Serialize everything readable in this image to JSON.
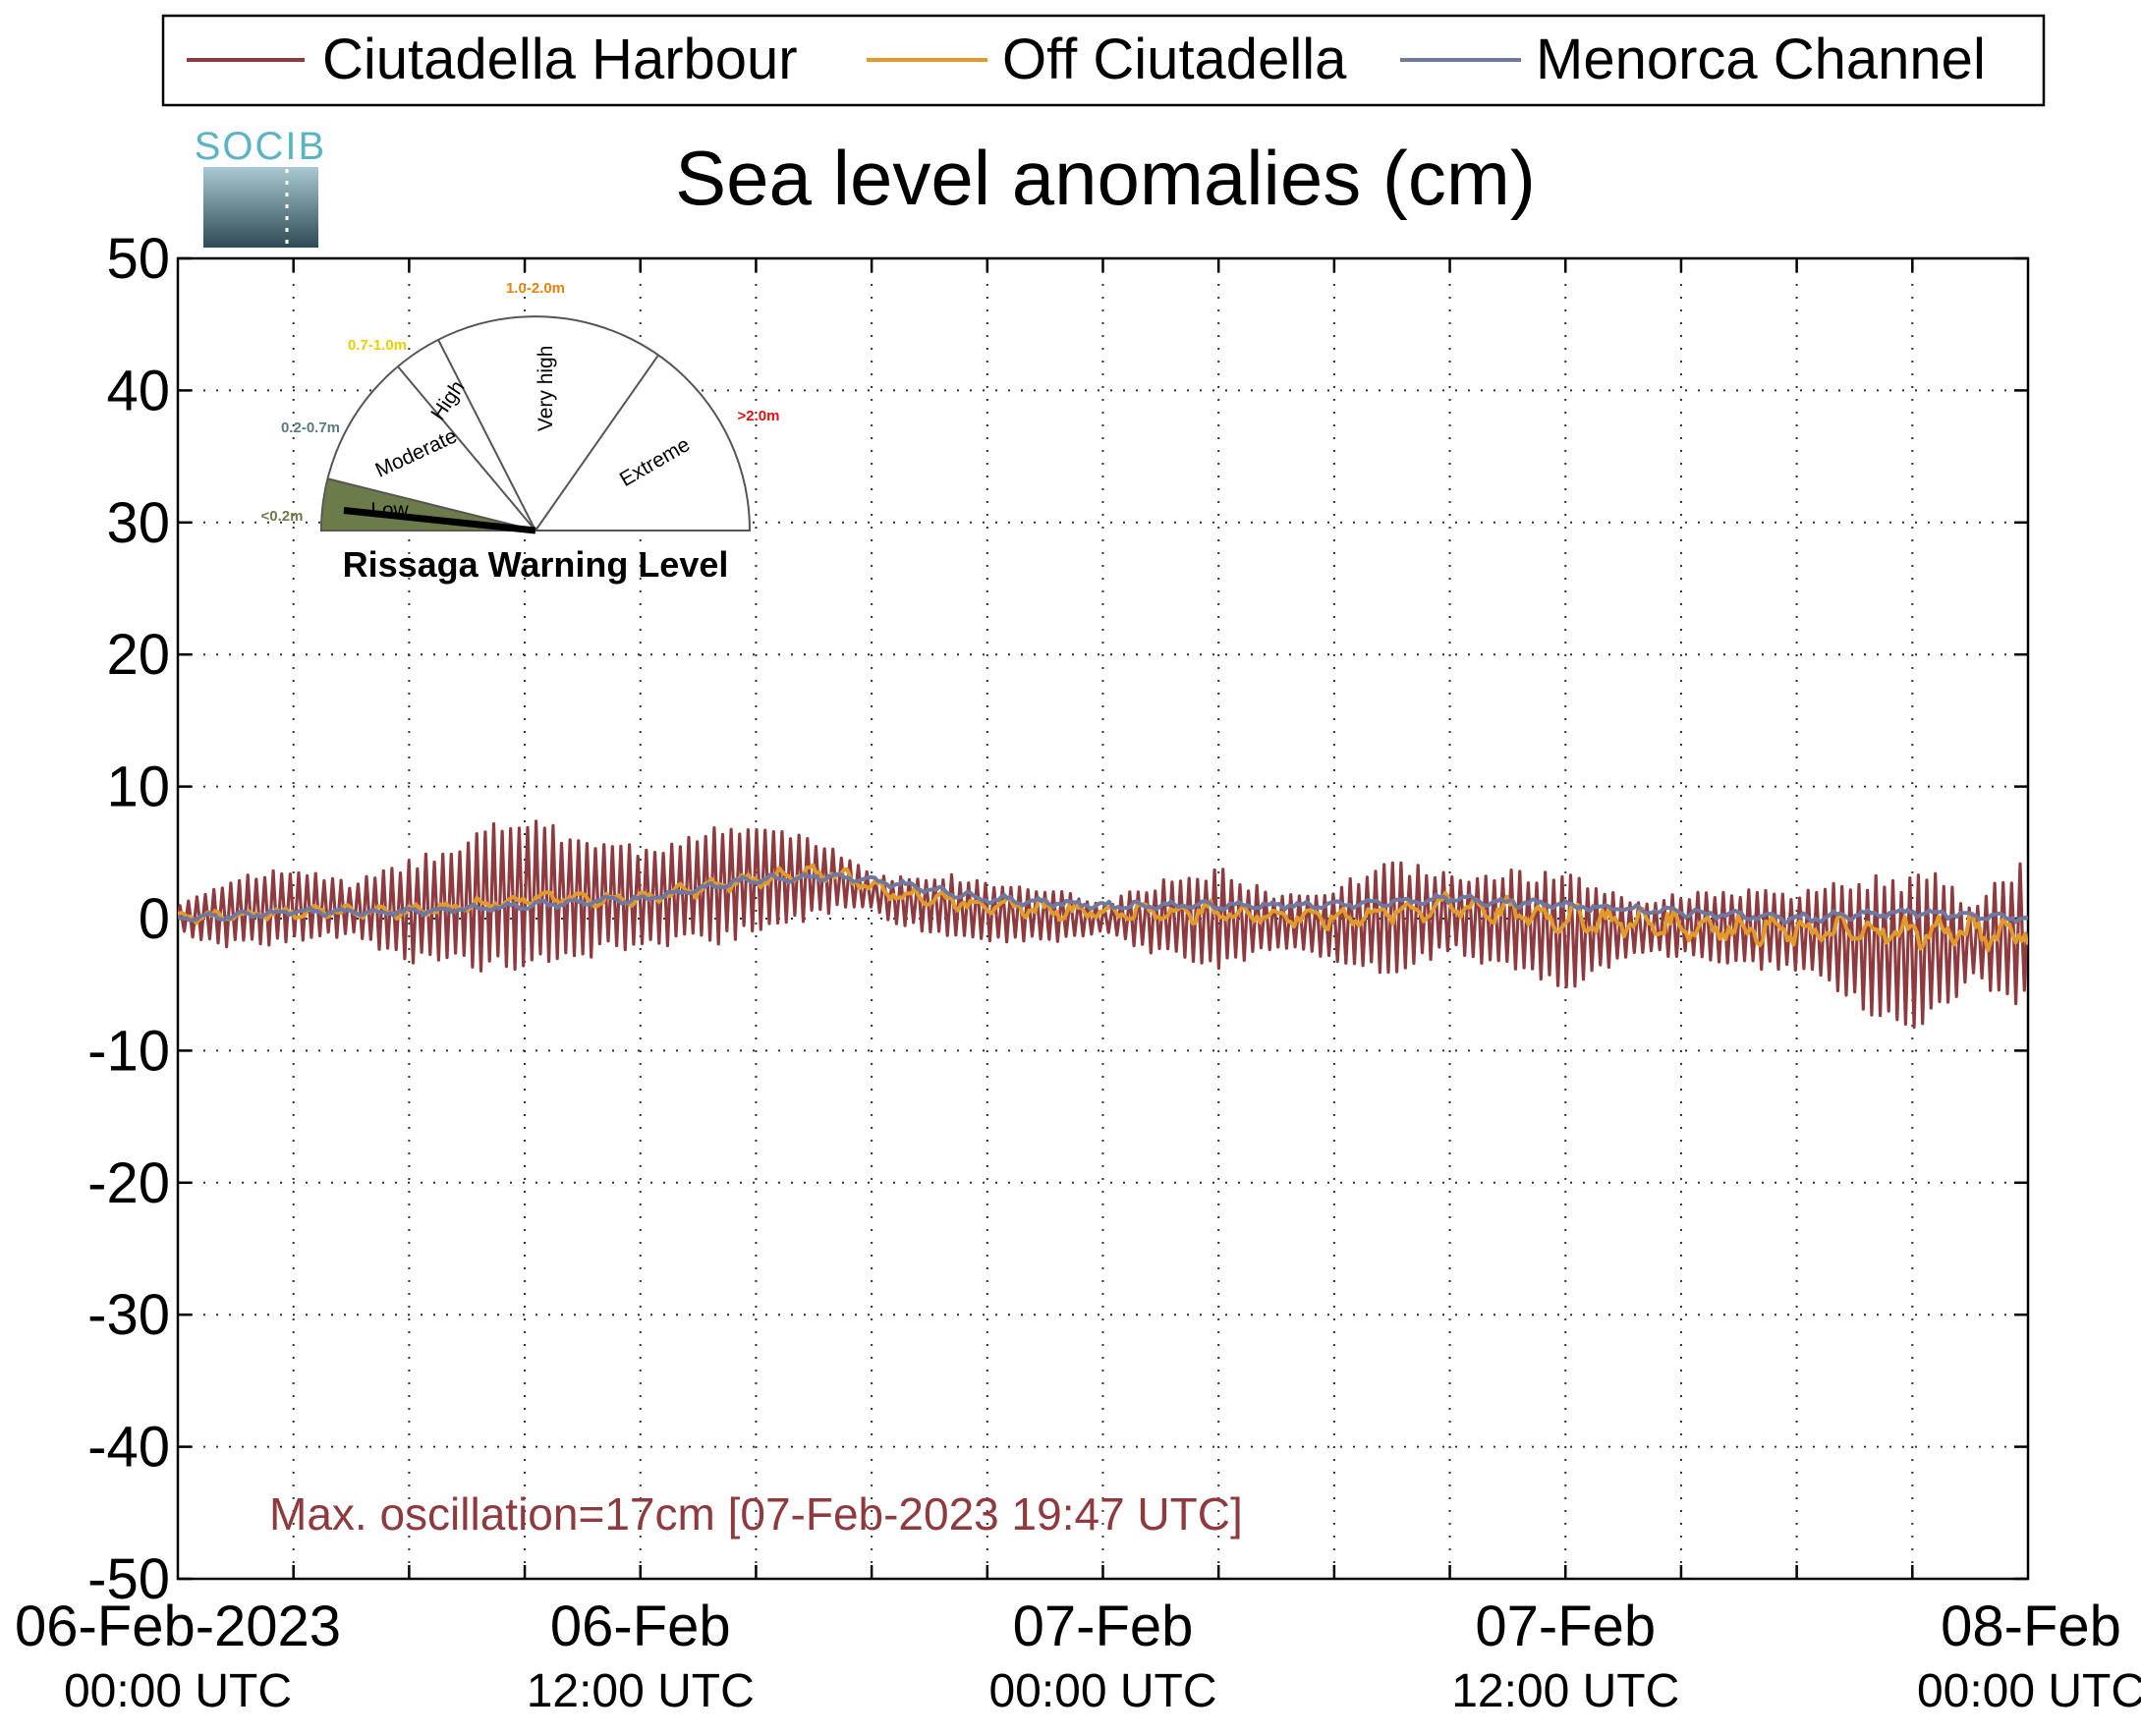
{
  "chart_data": {
    "type": "line",
    "title": "Sea level anomalies (cm)",
    "ylabel": "",
    "xlabel": "",
    "ylim": [
      -50,
      50
    ],
    "yticks": [
      50,
      40,
      30,
      20,
      10,
      0,
      -10,
      -20,
      -30,
      -40,
      -50
    ],
    "xlim_hours": [
      0,
      48
    ],
    "xtick_labels": [
      {
        "hour": 0,
        "date": "06-Feb-2023",
        "time": "00:00 UTC"
      },
      {
        "hour": 12,
        "date": "06-Feb",
        "time": "12:00 UTC"
      },
      {
        "hour": 24,
        "date": "07-Feb",
        "time": "00:00 UTC"
      },
      {
        "hour": 36,
        "date": "07-Feb",
        "time": "12:00 UTC"
      },
      {
        "hour": 48,
        "date": "08-Feb",
        "time": "00:00 UTC"
      }
    ],
    "grid": true,
    "legend_position": "top",
    "series": [
      {
        "name": "Ciutadella Harbour",
        "color": "#8e3a3e",
        "oscillation_period_hours": 0.22,
        "mean": [
          [
            0,
            0
          ],
          [
            3,
            1
          ],
          [
            6,
            0.5
          ],
          [
            9,
            2
          ],
          [
            12,
            1.5
          ],
          [
            15,
            3
          ],
          [
            17,
            3
          ],
          [
            18.5,
            1.5
          ],
          [
            21,
            0.5
          ],
          [
            24,
            0
          ],
          [
            27,
            0
          ],
          [
            30,
            -0.5
          ],
          [
            33,
            0.5
          ],
          [
            36,
            -1
          ],
          [
            39,
            -0.5
          ],
          [
            42,
            -1
          ],
          [
            45,
            -2.5
          ],
          [
            48,
            -1
          ]
        ],
        "amplitude": [
          [
            0,
            1
          ],
          [
            1,
            2.5
          ],
          [
            3,
            3
          ],
          [
            4.5,
            2
          ],
          [
            6,
            4
          ],
          [
            8.5,
            6
          ],
          [
            10,
            5
          ],
          [
            12,
            4
          ],
          [
            14,
            4.5
          ],
          [
            15.5,
            4
          ],
          [
            17,
            2.5
          ],
          [
            18,
            1.5
          ],
          [
            20,
            2.5
          ],
          [
            23,
            2
          ],
          [
            24,
            1
          ],
          [
            25,
            2.5
          ],
          [
            27,
            4
          ],
          [
            28.5,
            2
          ],
          [
            30,
            3
          ],
          [
            31.5,
            4.5
          ],
          [
            33,
            3
          ],
          [
            34.5,
            4
          ],
          [
            36,
            4.5
          ],
          [
            38,
            2
          ],
          [
            40,
            3
          ],
          [
            42,
            3
          ],
          [
            44,
            5.5
          ],
          [
            45.5,
            6
          ],
          [
            46.5,
            3
          ],
          [
            48,
            6
          ]
        ]
      },
      {
        "name": "Off Ciutadella",
        "color": "#e29a2c",
        "mean": [
          [
            0,
            0
          ],
          [
            3,
            0.5
          ],
          [
            6,
            0.5
          ],
          [
            9,
            1.5
          ],
          [
            12,
            1.5
          ],
          [
            15,
            3
          ],
          [
            17,
            3.5
          ],
          [
            18.5,
            2
          ],
          [
            21,
            1
          ],
          [
            24,
            0.5
          ],
          [
            27,
            0.5
          ],
          [
            30,
            0
          ],
          [
            33,
            1
          ],
          [
            36,
            0
          ],
          [
            39,
            -0.5
          ],
          [
            42,
            -1
          ],
          [
            45,
            -1
          ],
          [
            48,
            -1
          ]
        ],
        "amplitude": [
          [
            0,
            0.5
          ],
          [
            12,
            0.6
          ],
          [
            24,
            0.8
          ],
          [
            36,
            1.2
          ],
          [
            48,
            1.4
          ]
        ]
      },
      {
        "name": "Menorca Channel",
        "color": "#7078a0",
        "mean": [
          [
            0,
            0
          ],
          [
            3,
            0.5
          ],
          [
            6,
            0.5
          ],
          [
            9,
            1
          ],
          [
            12,
            1.5
          ],
          [
            15,
            3
          ],
          [
            17,
            3.2
          ],
          [
            19,
            2.5
          ],
          [
            21,
            1.5
          ],
          [
            24,
            1
          ],
          [
            27,
            1
          ],
          [
            30,
            1
          ],
          [
            33,
            1.5
          ],
          [
            36,
            1
          ],
          [
            39,
            0.5
          ],
          [
            42,
            0
          ],
          [
            45,
            0.5
          ],
          [
            48,
            0
          ]
        ],
        "amplitude": [
          [
            0,
            0.3
          ],
          [
            48,
            0.4
          ]
        ]
      }
    ],
    "annotation": "Max. oscillation=17cm [07-Feb-2023 19:47 UTC]",
    "annotation_color": "#8e3a3e"
  },
  "logo": {
    "text": "SOCIB",
    "color": "#5bb3c4"
  },
  "gauge": {
    "title": "Rissaga Warning Level",
    "current_level": "Low",
    "needle_fraction": 0.05,
    "levels": [
      {
        "name": "Low",
        "range": "<0.2m",
        "color": "#6b7b4a"
      },
      {
        "name": "Moderate",
        "range": "0.2-0.7m",
        "color": "#5a7a80"
      },
      {
        "name": "High",
        "range": "0.7-1.0m",
        "color": "#e8d000"
      },
      {
        "name": "Very high",
        "range": "1.0-2.0m",
        "color": "#e8820a"
      },
      {
        "name": "Extreme",
        "range": ">2.0m",
        "color": "#e01010"
      }
    ]
  }
}
